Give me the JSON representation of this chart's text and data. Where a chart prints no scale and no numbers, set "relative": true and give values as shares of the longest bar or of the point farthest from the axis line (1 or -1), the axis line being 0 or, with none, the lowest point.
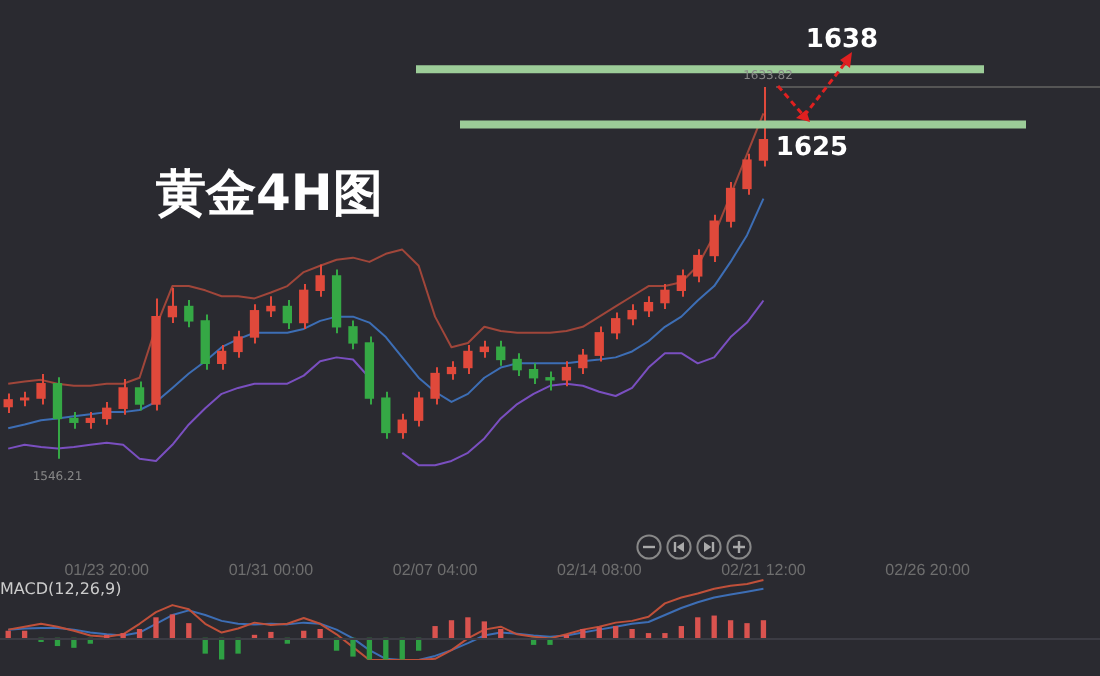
{
  "chart_data": [
    {
      "type": "candlestick",
      "title": "黄金4H图",
      "tick_labels": "x",
      "categories": [
        null,
        null,
        null,
        null,
        null,
        null,
        "01/23 20:00",
        null,
        null,
        null,
        null,
        null,
        null,
        null,
        null,
        null,
        "01/31 00:00",
        null,
        null,
        null,
        null,
        null,
        null,
        null,
        null,
        null,
        "02/07 04:00",
        null,
        null,
        null,
        null,
        null,
        null,
        null,
        null,
        null,
        "02/14 08:00",
        null,
        null,
        null,
        null,
        null,
        null,
        null,
        null,
        null,
        "02/21 12:00",
        null,
        null,
        null,
        null,
        null,
        null,
        null,
        null,
        null,
        "02/26 20:00",
        null,
        null,
        null,
        null,
        null,
        null,
        null,
        null,
        null,
        null
      ],
      "ohlc": [
        [
          1558.5,
          1561.6,
          1557.0,
          1560.1
        ],
        [
          1560.1,
          1562.0,
          1558.6,
          1560.5
        ],
        [
          1560.5,
          1566.2,
          1559.0,
          1563.9
        ],
        [
          1563.9,
          1565.4,
          1546.21,
          1555.7
        ],
        [
          1555.7,
          1557.2,
          1553.3,
          1554.8
        ],
        [
          1554.8,
          1557.2,
          1553.3,
          1555.7
        ],
        [
          1555.7,
          1559.6,
          1554.2,
          1558.1
        ],
        [
          1558.1,
          1565.0,
          1556.6,
          1562.9
        ],
        [
          1562.9,
          1564.4,
          1557.6,
          1559.1
        ],
        [
          1559.1,
          1584.0,
          1557.6,
          1579.7
        ],
        [
          1579.7,
          1586.5,
          1578.2,
          1582.1
        ],
        [
          1582.1,
          1583.6,
          1577.2,
          1578.7
        ],
        [
          1578.7,
          1580.2,
          1567.2,
          1568.7
        ],
        [
          1568.7,
          1573.0,
          1567.2,
          1571.5
        ],
        [
          1571.5,
          1576.4,
          1570.0,
          1574.9
        ],
        [
          1574.9,
          1582.6,
          1573.4,
          1581.1
        ],
        [
          1581.1,
          1584.5,
          1579.6,
          1582.1
        ],
        [
          1582.1,
          1583.6,
          1576.8,
          1578.3
        ],
        [
          1578.3,
          1587.4,
          1576.8,
          1585.9
        ],
        [
          1585.9,
          1592.0,
          1584.4,
          1589.3
        ],
        [
          1589.3,
          1590.8,
          1575.8,
          1577.3
        ],
        [
          1577.3,
          1578.8,
          1572.0,
          1573.5
        ],
        [
          1573.5,
          1575.0,
          1559.0,
          1560.5
        ],
        [
          1560.5,
          1562.0,
          1550.9,
          1552.4
        ],
        [
          1552.4,
          1556.8,
          1550.9,
          1555.3
        ],
        [
          1555.3,
          1562.0,
          1553.8,
          1560.5
        ],
        [
          1560.5,
          1567.8,
          1559.0,
          1566.3
        ],
        [
          1566.3,
          1569.2,
          1564.8,
          1567.7
        ],
        [
          1567.7,
          1573.0,
          1566.2,
          1571.5
        ],
        [
          1571.5,
          1574.0,
          1570.0,
          1572.5
        ],
        [
          1572.5,
          1574.0,
          1568.1,
          1569.6
        ],
        [
          1569.6,
          1571.1,
          1565.7,
          1567.2
        ],
        [
          1567.2,
          1568.7,
          1563.8,
          1565.3
        ],
        [
          1565.3,
          1566.8,
          1562.3,
          1564.8
        ],
        [
          1564.8,
          1569.2,
          1563.3,
          1567.7
        ],
        [
          1567.7,
          1572.1,
          1566.2,
          1570.6
        ],
        [
          1570.6,
          1577.4,
          1569.1,
          1575.9
        ],
        [
          1575.9,
          1580.7,
          1574.4,
          1579.2
        ],
        [
          1579.2,
          1582.6,
          1577.7,
          1581.1
        ],
        [
          1581.1,
          1584.5,
          1579.6,
          1583.0
        ],
        [
          1583.0,
          1587.4,
          1581.5,
          1585.9
        ],
        [
          1585.9,
          1590.8,
          1584.4,
          1589.3
        ],
        [
          1589.3,
          1595.6,
          1587.8,
          1594.1
        ],
        [
          1594.1,
          1603.7,
          1592.6,
          1602.2
        ],
        [
          1602.2,
          1611.4,
          1600.7,
          1609.9
        ],
        [
          1609.9,
          1618.1,
          1608.4,
          1616.6
        ],
        [
          1616.6,
          1633.82,
          1615.1,
          1621.4
        ],
        null,
        null,
        null,
        null,
        null,
        null,
        null,
        null,
        null,
        null,
        null,
        null,
        null,
        null,
        null,
        null,
        null,
        null,
        null,
        null
      ],
      "colors": [
        "#e0493b",
        "#e0493b",
        "#e0493b",
        "#35a845",
        "#35a845",
        "#e0493b",
        "#e0493b",
        "#e0493b",
        "#35a845",
        "#e0493b",
        "#e0493b",
        "#35a845",
        "#35a845",
        "#e0493b",
        "#e0493b",
        "#e0493b",
        "#e0493b",
        "#35a845",
        "#e0493b",
        "#e0493b",
        "#35a845",
        "#35a845",
        "#35a845",
        "#35a845",
        "#e0493b",
        "#e0493b",
        "#e0493b",
        "#e0493b",
        "#e0493b",
        "#e0493b",
        "#35a845",
        "#35a845",
        "#35a845",
        "#35a845",
        "#e0493b",
        "#e0493b",
        "#e0493b",
        "#e0493b",
        "#e0493b",
        "#e0493b",
        "#e0493b",
        "#e0493b",
        "#e0493b",
        "#e0493b",
        "#e0493b",
        "#e0493b",
        "#e0493b",
        null,
        null,
        null,
        null,
        null,
        null,
        null,
        null,
        null,
        null,
        null,
        null,
        null,
        null,
        null,
        null,
        null,
        null,
        null,
        null
      ],
      "series": [
        {
          "type": "line",
          "color": "#a0463a",
          "values": [
            1563.9,
            1564.4,
            1564.8,
            1563.9,
            1563.4,
            1563.4,
            1563.9,
            1563.9,
            1565.3,
            1577.3,
            1586.9,
            1586.9,
            1585.9,
            1584.5,
            1584.5,
            1584.0,
            1585.4,
            1586.9,
            1590.2,
            1591.7,
            1593.1,
            1593.6,
            1592.6,
            1594.5,
            1595.5,
            1591.7,
            1579.7,
            1572.5,
            1573.5,
            1577.3,
            1576.3,
            1575.9,
            1575.9,
            1575.9,
            1576.3,
            1577.3,
            1579.7,
            1582.1,
            1584.5,
            1586.9,
            1586.9,
            1587.8,
            1591.7,
            1598.9,
            1608.4,
            1618.0,
            1627.6,
            null,
            null,
            null,
            null,
            null,
            null,
            null,
            null,
            null,
            null,
            null,
            null,
            null,
            null,
            null,
            null,
            null,
            null,
            null,
            null
          ]
        },
        {
          "type": "line",
          "color": "#3d6eb5",
          "values": [
            1553.4,
            1554.3,
            1555.3,
            1555.7,
            1556.2,
            1556.7,
            1557.2,
            1557.2,
            1557.7,
            1559.6,
            1562.9,
            1566.3,
            1569.2,
            1572.5,
            1574.4,
            1575.9,
            1575.9,
            1575.9,
            1576.8,
            1578.7,
            1579.7,
            1579.7,
            1578.3,
            1574.9,
            1570.1,
            1565.3,
            1562.0,
            1559.6,
            1561.5,
            1565.3,
            1567.7,
            1568.7,
            1568.7,
            1568.7,
            1568.7,
            1569.2,
            1569.6,
            1570.1,
            1571.5,
            1573.9,
            1577.3,
            1579.7,
            1583.5,
            1586.9,
            1592.6,
            1598.9,
            1607.5,
            null,
            null,
            null,
            null,
            null,
            null,
            null,
            null,
            null,
            null,
            null,
            null,
            null,
            null,
            null,
            null,
            null,
            null,
            null,
            null
          ]
        },
        {
          "type": "line",
          "color": "#7a4fc0",
          "values": [
            1548.6,
            1549.5,
            1549.0,
            1548.6,
            1549.0,
            1549.5,
            1550.0,
            1549.5,
            1546.2,
            1545.7,
            1549.5,
            1554.3,
            1558.1,
            1561.5,
            1562.9,
            1563.9,
            1563.9,
            1563.9,
            1565.8,
            1569.2,
            1570.1,
            1569.6,
            1565.3,
            null,
            1547.6,
            1544.7,
            1544.7,
            1545.7,
            1547.6,
            1551.0,
            1555.7,
            1559.1,
            1561.5,
            1563.4,
            1563.9,
            1563.4,
            1562.0,
            1561.0,
            1562.9,
            1567.7,
            1571.1,
            1571.1,
            1568.7,
            1570.1,
            1574.9,
            1578.3,
            1583.5,
            null,
            null,
            null,
            null,
            null,
            null,
            null,
            null,
            null,
            null,
            null,
            null,
            null,
            null,
            null,
            null,
            null,
            null,
            null,
            null
          ]
        }
      ],
      "ref_lines": [
        {
          "axis": "y",
          "value": 1638,
          "label": "1638",
          "color": "#9ccc98"
        },
        {
          "axis": "y",
          "value": 1625,
          "label": "1625",
          "color": "#9ccc98"
        },
        {
          "axis": "y",
          "value": 1633.82,
          "label": "1633.82",
          "color": "#555555"
        }
      ],
      "annotations": [
        {
          "text": "1546.21",
          "y": 1546.21
        }
      ]
    },
    {
      "type": "bar",
      "title": "MACD(12,26,9)",
      "relative": true,
      "tick_labels": false,
      "categories": [
        null,
        null,
        null,
        null,
        null,
        null,
        null,
        null,
        null,
        null,
        null,
        null,
        null,
        null,
        null,
        null,
        null,
        null,
        null,
        null,
        null,
        null,
        null,
        null,
        null,
        null,
        null,
        null,
        null,
        null,
        null,
        null,
        null,
        null,
        null,
        null,
        null,
        null,
        null,
        null,
        null,
        null,
        null,
        null,
        null,
        null,
        null,
        null,
        null,
        null,
        null,
        null,
        null,
        null,
        null,
        null,
        null,
        null,
        null,
        null,
        null,
        null,
        null,
        null,
        null,
        null,
        null
      ],
      "series": [
        {
          "type": "bar",
          "colors": [
            "#d9534f",
            "#d9534f",
            "#2ea043",
            "#2ea043",
            "#2ea043",
            "#2ea043",
            "#d9534f",
            "#d9534f",
            "#d9534f",
            "#d9534f",
            "#d9534f",
            "#d9534f",
            "#2ea043",
            "#2ea043",
            "#2ea043",
            "#d9534f",
            "#d9534f",
            "#2ea043",
            "#d9534f",
            "#d9534f",
            "#2ea043",
            "#2ea043",
            "#2ea043",
            "#2ea043",
            "#2ea043",
            "#2ea043",
            "#d9534f",
            "#d9534f",
            "#d9534f",
            "#d9534f",
            "#d9534f",
            "#2ea043",
            "#2ea043",
            "#2ea043",
            "#d9534f",
            "#d9534f",
            "#d9534f",
            "#d9534f",
            "#d9534f",
            "#d9534f",
            "#d9534f",
            "#d9534f",
            "#d9534f",
            "#d9534f",
            "#d9534f",
            "#d9534f",
            "#d9534f",
            null,
            null,
            null,
            null,
            null,
            null,
            null,
            null,
            null,
            null,
            null,
            null,
            null,
            null,
            null,
            null,
            null,
            null,
            null,
            null
          ],
          "values": [
            0.12,
            0.12,
            -0.05,
            -0.12,
            -0.15,
            -0.08,
            0.05,
            0.08,
            0.15,
            0.35,
            0.4,
            0.25,
            -0.25,
            -0.35,
            -0.25,
            0.05,
            0.1,
            -0.08,
            0.12,
            0.15,
            -0.2,
            -0.3,
            -0.35,
            -0.35,
            -0.35,
            -0.2,
            0.2,
            0.3,
            0.35,
            0.28,
            0.15,
            null,
            -0.1,
            -0.1,
            0.05,
            0.15,
            0.18,
            0.2,
            0.15,
            0.08,
            0.08,
            0.2,
            0.35,
            0.38,
            0.3,
            0.25,
            0.3,
            null,
            null,
            null,
            null,
            null,
            null,
            null,
            null,
            null,
            null,
            null,
            null,
            null,
            null,
            null,
            null,
            null,
            null,
            null,
            null
          ]
        },
        {
          "type": "line",
          "color": "#c0503a",
          "values": [
            0.15,
            0.2,
            0.25,
            0.2,
            0.13,
            0.05,
            0.03,
            0.07,
            0.25,
            0.45,
            0.57,
            0.5,
            0.25,
            0.1,
            0.17,
            0.27,
            0.23,
            0.25,
            0.35,
            0.25,
            0.07,
            -0.15,
            -0.37,
            -0.37,
            -0.37,
            -0.37,
            -0.35,
            -0.2,
            0,
            0.15,
            0.2,
            0.07,
            0.03,
            0,
            0.07,
            0.15,
            0.2,
            0.27,
            0.3,
            0.37,
            0.6,
            0.7,
            0.77,
            0.85,
            0.9,
            0.93,
            1,
            null,
            null,
            null,
            null,
            null,
            null,
            null,
            null,
            null,
            null,
            null,
            null,
            null,
            null,
            null,
            null,
            null,
            null,
            null,
            null
          ]
        },
        {
          "type": "line",
          "color": "#3d6eb5",
          "values": [
            0.15,
            0.17,
            0.18,
            0.18,
            0.15,
            0.1,
            0.07,
            0.05,
            0.1,
            0.25,
            0.4,
            0.48,
            0.4,
            0.3,
            0.25,
            0.24,
            0.25,
            0.24,
            0.27,
            0.25,
            0.15,
            0,
            -0.2,
            -0.35,
            -0.37,
            -0.37,
            -0.3,
            -0.2,
            -0.08,
            0.05,
            0.1,
            0.08,
            0.05,
            0.03,
            0.05,
            0.1,
            0.15,
            0.2,
            0.25,
            0.28,
            0.4,
            0.52,
            0.62,
            0.7,
            0.75,
            0.8,
            0.85,
            null,
            null,
            null,
            null,
            null,
            null,
            null,
            null,
            null,
            null,
            null,
            null,
            null,
            null,
            null,
            null,
            null,
            null,
            null,
            null
          ]
        }
      ]
    }
  ]
}
